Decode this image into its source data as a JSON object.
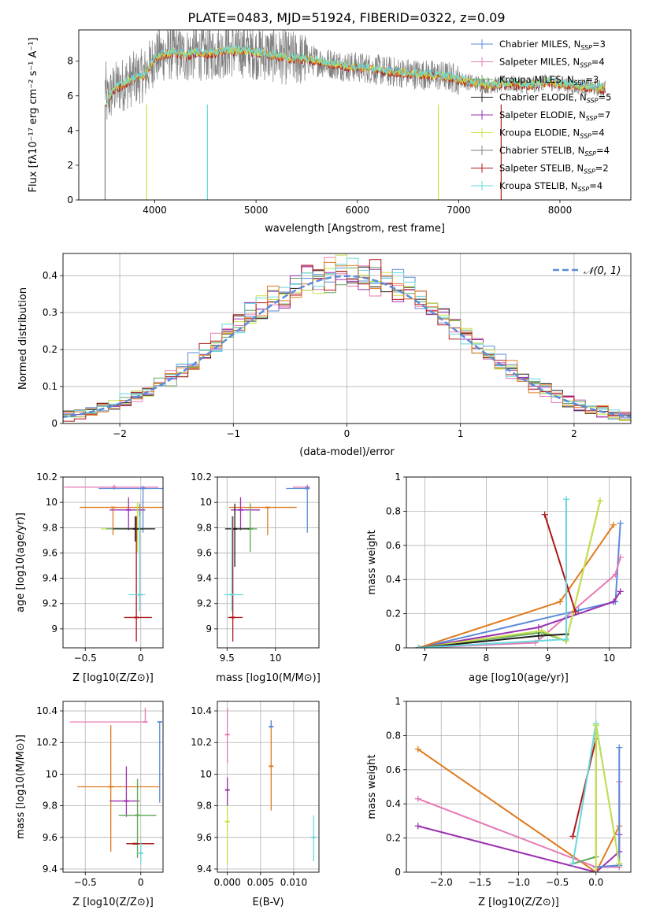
{
  "title": "PLATE=0483, MJD=51924, FIBERID=0322, z=0.09",
  "colors": {
    "chabrier_miles": "#5b8bd9",
    "salpeter_miles": "#e67ab5",
    "kroupa_miles": "#60a860",
    "chabrier_elodie": "#1f1f1f",
    "salpeter_elodie": "#9b30b0",
    "kroupa_elodie": "#c8e04a",
    "chabrier_stelib": "#7f7f7f",
    "salpeter_stelib": "#b01818",
    "kroupa_stelib": "#66d8dc",
    "extra_orange": "#e07a1f",
    "normal_curve": "#5b8bd9"
  },
  "chart_data": [
    {
      "id": "spectrum",
      "type": "line",
      "xlabel": "wavelength [Angstrom, rest frame]",
      "ylabel": "Flux [f_λ 10^-17 erg cm^-2 s^-1 A^-1]",
      "xlim": [
        3250,
        8700
      ],
      "ylim": [
        0,
        9.8
      ],
      "xticks": [
        4000,
        5000,
        6000,
        7000,
        8000
      ],
      "yticks": [
        0,
        2,
        4,
        6,
        8
      ],
      "legend_position": "right",
      "legend": [
        {
          "label": "Chabrier MILES, N_SSP=3",
          "color_key": "chabrier_miles"
        },
        {
          "label": "Salpeter MILES, N_SSP=4",
          "color_key": "salpeter_miles"
        },
        {
          "label": "Kroupa MILES, N_SSP=3",
          "color_key": "kroupa_miles"
        },
        {
          "label": "Chabrier ELODIE, N_SSP=5",
          "color_key": "chabrier_elodie"
        },
        {
          "label": "Salpeter ELODIE, N_SSP=7",
          "color_key": "salpeter_elodie"
        },
        {
          "label": "Kroupa ELODIE, N_SSP=4",
          "color_key": "kroupa_elodie"
        },
        {
          "label": "Chabrier STELIB, N_SSP=4",
          "color_key": "chabrier_stelib"
        },
        {
          "label": "Salpeter STELIB, N_SSP=2",
          "color_key": "salpeter_stelib"
        },
        {
          "label": "Kroupa STELIB, N_SSP=4",
          "color_key": "kroupa_stelib"
        }
      ],
      "continuum": [
        [
          3520,
          5.6
        ],
        [
          3600,
          6.4
        ],
        [
          3700,
          6.7
        ],
        [
          3800,
          7.0
        ],
        [
          3900,
          7.2
        ],
        [
          4000,
          8.2
        ],
        [
          4100,
          8.4
        ],
        [
          4200,
          8.5
        ],
        [
          4300,
          8.3
        ],
        [
          4400,
          8.5
        ],
        [
          4500,
          8.4
        ],
        [
          4700,
          8.6
        ],
        [
          4900,
          8.6
        ],
        [
          5100,
          8.4
        ],
        [
          5300,
          8.2
        ],
        [
          5500,
          8.1
        ],
        [
          5700,
          7.9
        ],
        [
          5900,
          7.7
        ],
        [
          6100,
          7.6
        ],
        [
          6300,
          7.4
        ],
        [
          6500,
          7.3
        ],
        [
          6700,
          7.2
        ],
        [
          6900,
          7.1
        ],
        [
          7100,
          6.8
        ],
        [
          7300,
          6.6
        ],
        [
          7500,
          6.7
        ],
        [
          7700,
          6.6
        ],
        [
          7900,
          6.8
        ],
        [
          8100,
          6.6
        ],
        [
          8300,
          6.5
        ],
        [
          8450,
          6.4
        ]
      ]
    },
    {
      "id": "residuals",
      "type": "histogram",
      "xlabel": "(data-model)/error",
      "ylabel": "Normed distribution",
      "xlim": [
        -2.5,
        2.5
      ],
      "ylim": [
        0,
        0.46
      ],
      "xticks": [
        -2,
        -1,
        0,
        1,
        2
      ],
      "yticks": [
        0.0,
        0.1,
        0.2,
        0.3,
        0.4
      ],
      "legend": [
        {
          "label": "𝒩(0, 1)",
          "color_key": "normal_curve"
        }
      ],
      "legend_position": "top-right"
    },
    {
      "id": "age_vs_Z",
      "type": "scatter",
      "xlabel": "Z [log10(Z/Z⊙)]",
      "ylabel": "age  [log10(age/yr)]",
      "xlim": [
        -0.7,
        0.2
      ],
      "ylim": [
        8.85,
        10.2
      ],
      "xticks": [
        -0.5,
        0.0
      ],
      "yticks": [
        9.0,
        9.2,
        9.4,
        9.6,
        9.8,
        10.0,
        10.2
      ],
      "crosses": [
        {
          "x": -0.24,
          "y": 10.12,
          "xerr": [
            0.45,
            0.4
          ],
          "yerr": [
            0.02,
            0.02
          ],
          "color_key": "salpeter_miles"
        },
        {
          "x": 0.02,
          "y": 10.11,
          "xerr": [
            0.4,
            0.2
          ],
          "yerr": [
            0.35,
            0.02
          ],
          "color_key": "chabrier_miles"
        },
        {
          "x": -0.25,
          "y": 9.96,
          "xerr": [
            0.3,
            0.45
          ],
          "yerr": [
            0.22,
            0.0
          ],
          "color_key": "extra_orange"
        },
        {
          "x": -0.11,
          "y": 9.94,
          "xerr": [
            0.17,
            0.15
          ],
          "yerr": [
            0.16,
            0.1
          ],
          "color_key": "salpeter_elodie"
        },
        {
          "x": -0.03,
          "y": 9.79,
          "xerr": [
            0.33,
            0.13
          ],
          "yerr": [
            0.18,
            0.21
          ],
          "color_key": "kroupa_elodie"
        },
        {
          "x": -0.01,
          "y": 9.79,
          "xerr": [
            0.3,
            0.13
          ],
          "yerr": [
            0.18,
            0.2
          ],
          "color_key": "kroupa_miles"
        },
        {
          "x": -0.05,
          "y": 9.79,
          "xerr": [
            0.2,
            0.18
          ],
          "yerr": [
            0.1,
            0.1
          ],
          "color_key": "chabrier_elodie"
        },
        {
          "x": -0.04,
          "y": 9.09,
          "xerr": [
            0.11,
            0.14
          ],
          "yerr": [
            0.19,
            0.8
          ],
          "color_key": "salpeter_stelib"
        },
        {
          "x": -0.01,
          "y": 9.27,
          "xerr": [
            0.1,
            0.05
          ],
          "yerr": [
            0.13,
            0.62
          ],
          "color_key": "kroupa_stelib"
        }
      ]
    },
    {
      "id": "age_vs_mass",
      "type": "scatter",
      "xlabel": "mass [log10(M/M⊙)]",
      "ylabel": "",
      "xlim": [
        9.4,
        10.45
      ],
      "ylim": [
        8.85,
        10.2
      ],
      "xticks": [
        9.5,
        10.0
      ],
      "yticks": [
        9.0,
        9.2,
        9.4,
        9.6,
        9.8,
        10.0,
        10.2
      ],
      "crosses": [
        {
          "x": 10.33,
          "y": 10.12,
          "xerr": [
            0.15,
            0.0
          ],
          "yerr": [
            0.02,
            0.02
          ],
          "color_key": "salpeter_miles"
        },
        {
          "x": 10.33,
          "y": 10.11,
          "xerr": [
            0.22,
            0.0
          ],
          "yerr": [
            0.35,
            0.02
          ],
          "color_key": "chabrier_miles"
        },
        {
          "x": 9.92,
          "y": 9.96,
          "xerr": [
            0.4,
            0.3
          ],
          "yerr": [
            0.22,
            0.0
          ],
          "color_key": "extra_orange"
        },
        {
          "x": 9.64,
          "y": 9.94,
          "xerr": [
            0.1,
            0.2
          ],
          "yerr": [
            0.16,
            0.1
          ],
          "color_key": "salpeter_elodie"
        },
        {
          "x": 9.74,
          "y": 9.79,
          "xerr": [
            0.25,
            0.07
          ],
          "yerr": [
            0.18,
            0.21
          ],
          "color_key": "kroupa_elodie"
        },
        {
          "x": 9.74,
          "y": 9.79,
          "xerr": [
            0.25,
            0.07
          ],
          "yerr": [
            0.18,
            0.2
          ],
          "color_key": "kroupa_miles"
        },
        {
          "x": 9.58,
          "y": 9.79,
          "xerr": [
            0.1,
            0.15
          ],
          "yerr": [
            0.3,
            0.2
          ],
          "color_key": "chabrier_elodie"
        },
        {
          "x": 9.56,
          "y": 9.09,
          "xerr": [
            0.05,
            0.1
          ],
          "yerr": [
            0.19,
            0.8
          ],
          "color_key": "salpeter_stelib"
        },
        {
          "x": 9.55,
          "y": 9.27,
          "xerr": [
            0.08,
            0.12
          ],
          "yerr": [
            0.13,
            0.62
          ],
          "color_key": "kroupa_stelib"
        }
      ]
    },
    {
      "id": "weight_vs_age",
      "type": "line",
      "xlabel": "age  [log10(age/yr)]",
      "ylabel": "mass weight",
      "xlim": [
        6.7,
        10.35
      ],
      "ylim": [
        0,
        1.0
      ],
      "xticks": [
        7,
        8,
        9,
        10
      ],
      "yticks": [
        0.0,
        0.2,
        0.4,
        0.6,
        0.8,
        1.0
      ],
      "series": [
        {
          "color_key": "chabrier_miles",
          "x": [
            6.9,
            9.5,
            10.1,
            10.18
          ],
          "y": [
            0.0,
            0.22,
            0.27,
            0.73
          ]
        },
        {
          "color_key": "salpeter_miles",
          "x": [
            6.9,
            8.8,
            10.1,
            10.18
          ],
          "y": [
            0.0,
            0.03,
            0.43,
            0.53
          ]
        },
        {
          "color_key": "extra_orange",
          "x": [
            6.9,
            9.2,
            10.07
          ],
          "y": [
            0.0,
            0.27,
            0.72
          ]
        },
        {
          "color_key": "salpeter_elodie",
          "x": [
            6.9,
            8.85,
            10.07,
            10.18
          ],
          "y": [
            0.0,
            0.12,
            0.27,
            0.33
          ]
        },
        {
          "color_key": "kroupa_miles",
          "x": [
            6.9,
            8.9,
            9.3,
            9.85
          ],
          "y": [
            0.0,
            0.09,
            0.04,
            0.86
          ]
        },
        {
          "color_key": "kroupa_elodie",
          "x": [
            6.9,
            8.9,
            9.3,
            9.85
          ],
          "y": [
            0.0,
            0.1,
            0.04,
            0.86
          ]
        },
        {
          "color_key": "chabrier_elodie",
          "x": [
            6.9,
            8.85,
            9.3
          ],
          "y": [
            0.0,
            0.07,
            0.08
          ]
        },
        {
          "color_key": "salpeter_stelib",
          "x": [
            8.95,
            9.45
          ],
          "y": [
            0.78,
            0.21
          ]
        },
        {
          "color_key": "kroupa_stelib",
          "x": [
            6.9,
            9.3,
            9.3
          ],
          "y": [
            0.0,
            0.05,
            0.87
          ]
        }
      ]
    },
    {
      "id": "mass_vs_Z",
      "type": "scatter",
      "xlabel": "Z [log10(Z/Z⊙)]",
      "ylabel": "mass [log10(M/M⊙)]",
      "xlim": [
        -0.7,
        0.2
      ],
      "ylim": [
        9.38,
        10.46
      ],
      "xticks": [
        -0.5,
        0.0
      ],
      "yticks": [
        9.4,
        9.6,
        9.8,
        10.0,
        10.2,
        10.4
      ],
      "crosses": [
        {
          "x": 0.04,
          "y": 10.33,
          "xerr": [
            0.68,
            0.0
          ],
          "yerr": [
            0.0,
            0.09
          ],
          "color_key": "salpeter_miles"
        },
        {
          "x": 0.17,
          "y": 10.33,
          "xerr": [
            0.0,
            0.0
          ],
          "yerr": [
            0.51,
            0.0
          ],
          "color_key": "chabrier_miles"
        },
        {
          "x": -0.27,
          "y": 9.92,
          "xerr": [
            0.3,
            0.44
          ],
          "yerr": [
            0.41,
            0.39
          ],
          "color_key": "extra_orange"
        },
        {
          "x": -0.13,
          "y": 9.83,
          "xerr": [
            0.15,
            0.12
          ],
          "yerr": [
            0.1,
            0.22
          ],
          "color_key": "salpeter_elodie"
        },
        {
          "x": -0.03,
          "y": 9.74,
          "xerr": [
            0.17,
            0.17
          ],
          "yerr": [
            0.27,
            0.23
          ],
          "color_key": "kroupa_elodie"
        },
        {
          "x": -0.03,
          "y": 9.74,
          "xerr": [
            0.17,
            0.17
          ],
          "yerr": [
            0.27,
            0.23
          ],
          "color_key": "kroupa_miles"
        },
        {
          "x": -0.05,
          "y": 9.56,
          "xerr": [
            0.08,
            0.17
          ],
          "yerr": [
            0.0,
            0.0
          ],
          "color_key": "chabrier_elodie"
        },
        {
          "x": -0.05,
          "y": 9.56,
          "xerr": [
            0.08,
            0.17
          ],
          "yerr": [
            0.0,
            0.0
          ],
          "color_key": "salpeter_stelib"
        },
        {
          "x": 0.0,
          "y": 9.5,
          "xerr": [
            0.02,
            0.02
          ],
          "yerr": [
            0.07,
            0.07
          ],
          "color_key": "kroupa_stelib"
        }
      ]
    },
    {
      "id": "mass_vs_ebv",
      "type": "scatter",
      "xlabel": "E(B-V)",
      "ylabel": "",
      "xlim": [
        -0.0015,
        0.0138
      ],
      "ylim": [
        9.38,
        10.46
      ],
      "xticks": [
        0.0,
        0.005,
        0.01
      ],
      "xtick_labels": [
        "0.000",
        "0.005",
        "0.010"
      ],
      "yticks": [
        9.4,
        9.6,
        9.8,
        10.0,
        10.2,
        10.4
      ],
      "crosses": [
        {
          "x": 0.0,
          "y": 10.25,
          "yerr": [
            0.18,
            0.17
          ],
          "color_key": "salpeter_miles"
        },
        {
          "x": 0.0,
          "y": 9.7,
          "yerr": [
            0.27,
            0.27
          ],
          "color_key": "kroupa_elodie"
        },
        {
          "x": 0.0,
          "y": 9.9,
          "yerr": [
            0.1,
            0.08
          ],
          "color_key": "salpeter_elodie"
        },
        {
          "x": 0.0066,
          "y": 10.05,
          "yerr": [
            0.28,
            0.29
          ],
          "color_key": "extra_orange"
        },
        {
          "x": 0.0066,
          "y": 10.3,
          "yerr": [
            0.01,
            0.04
          ],
          "color_key": "chabrier_miles"
        },
        {
          "x": 0.013,
          "y": 9.6,
          "yerr": [
            0.15,
            0.14
          ],
          "color_key": "kroupa_stelib"
        }
      ]
    },
    {
      "id": "weight_vs_Z",
      "type": "line",
      "xlabel": "Z [log10(Z/Z⊙)]",
      "ylabel": "mass weight",
      "xlim": [
        -2.45,
        0.45
      ],
      "ylim": [
        0,
        1.0
      ],
      "xticks": [
        -2.0,
        -1.5,
        -1.0,
        -0.5,
        0.0
      ],
      "xtick_labels": [
        "−2.0",
        "−1.5",
        "−1.0",
        "−0.5",
        "0.0"
      ],
      "yticks": [
        0.0,
        0.2,
        0.4,
        0.6,
        0.8,
        1.0
      ],
      "series": [
        {
          "color_key": "extra_orange",
          "x": [
            -2.3,
            0.0,
            0.3
          ],
          "y": [
            0.72,
            0.0,
            0.27
          ]
        },
        {
          "color_key": "salpeter_miles",
          "x": [
            -2.3,
            0.0,
            0.3,
            0.3
          ],
          "y": [
            0.43,
            0.03,
            0.03,
            0.53
          ]
        },
        {
          "color_key": "salpeter_elodie",
          "x": [
            -2.3,
            0.0,
            0.3,
            0.3
          ],
          "y": [
            0.27,
            0.0,
            0.12,
            0.22
          ]
        },
        {
          "color_key": "chabrier_miles",
          "x": [
            0.0,
            0.3,
            0.3
          ],
          "y": [
            0.03,
            0.04,
            0.73
          ]
        },
        {
          "color_key": "salpeter_stelib",
          "x": [
            -0.3,
            0.0
          ],
          "y": [
            0.21,
            0.78
          ]
        },
        {
          "color_key": "kroupa_miles",
          "x": [
            -0.3,
            0.0,
            0.0
          ],
          "y": [
            0.05,
            0.09,
            0.86
          ]
        },
        {
          "color_key": "kroupa_stelib",
          "x": [
            -0.3,
            0.0,
            0.3
          ],
          "y": [
            0.05,
            0.87,
            0.05
          ]
        },
        {
          "color_key": "kroupa_elodie",
          "x": [
            0.0,
            0.0,
            0.3
          ],
          "y": [
            0.0,
            0.86,
            0.05
          ]
        }
      ]
    }
  ]
}
